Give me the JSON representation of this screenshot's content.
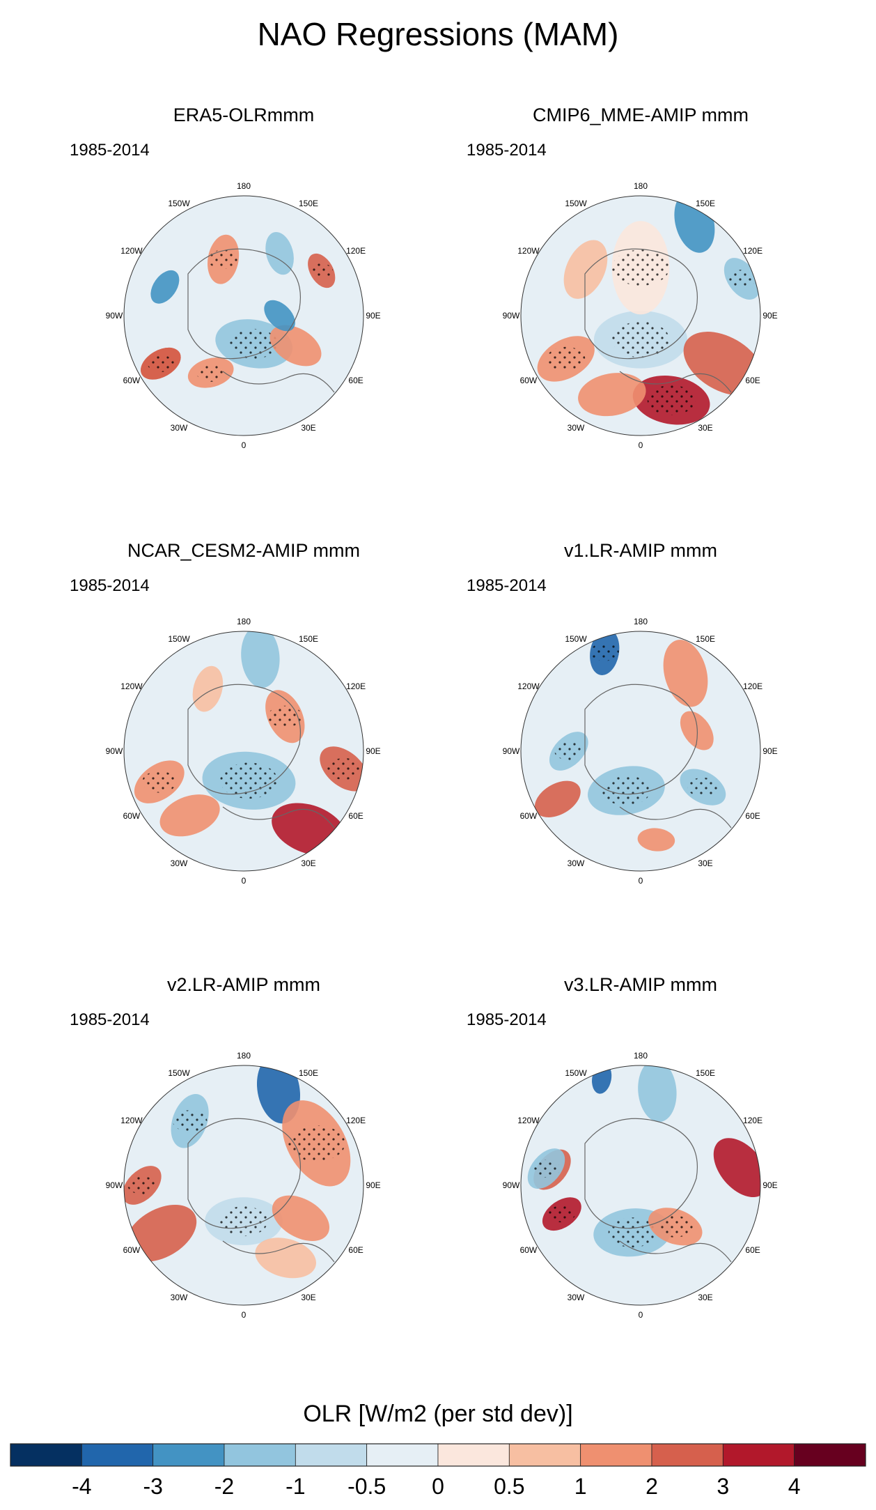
{
  "title": "NAO Regressions (MAM)",
  "chart_data": {
    "type": "heatmap",
    "projection": "north-polar-stereographic",
    "title": "NAO Regressions (MAM)",
    "lon_labels": [
      "180",
      "150E",
      "120E",
      "90E",
      "60E",
      "30E",
      "0",
      "30W",
      "60W",
      "90W",
      "120W",
      "150W"
    ],
    "colorbar": {
      "label": "OLR [W/m2 (per std dev)]",
      "ticks": [
        "-4",
        "-3",
        "-2",
        "-1",
        "-0.5",
        "0",
        "0.5",
        "1",
        "2",
        "3",
        "4"
      ],
      "levels": [
        -4,
        -3,
        -2,
        -1,
        -0.5,
        0,
        0.5,
        1,
        2,
        3,
        4
      ],
      "colors": [
        "#053061",
        "#2166ac",
        "#4393c3",
        "#92c5de",
        "#c1dceb",
        "#e6eff5",
        "#fbe7dd",
        "#f7bfa2",
        "#ef9070",
        "#d6604d",
        "#b2182b",
        "#67001f"
      ]
    },
    "panels": [
      {
        "title": "ERA5-OLRmmm",
        "period": "1985-2014"
      },
      {
        "title": "CMIP6_MME-AMIP  mmm",
        "period": "1985-2014"
      },
      {
        "title": "NCAR_CESM2-AMIP  mmm",
        "period": "1985-2014"
      },
      {
        "title": "v1.LR-AMIP  mmm",
        "period": "1985-2014"
      },
      {
        "title": "v2.LR-AMIP  mmm",
        "period": "1985-2014"
      },
      {
        "title": "v3.LR-AMIP  mmm",
        "period": "1985-2014"
      }
    ]
  }
}
